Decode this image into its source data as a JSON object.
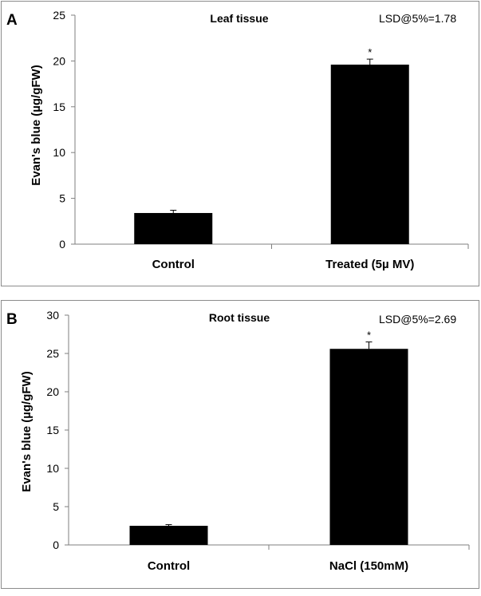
{
  "panels": [
    {
      "letter": "A",
      "title": "Leaf tissue",
      "lsd": "LSD@5%=1.78",
      "ylabel": "Evan's blue (µg/gFW)"
    },
    {
      "letter": "B",
      "title": "Root tissue",
      "lsd": "LSD@5%=2.69",
      "ylabel": "Evan's blue (µg/gFW)"
    }
  ],
  "chart_data": [
    {
      "type": "bar",
      "title": "Leaf tissue",
      "xlabel": "",
      "ylabel": "Evan's blue (µg/gFW)",
      "categories": [
        "Control",
        "Treated (5µ MV)"
      ],
      "values": [
        3.4,
        19.6
      ],
      "errors": [
        0.3,
        0.6
      ],
      "significance": [
        "",
        "*"
      ],
      "ylim": [
        0,
        25
      ],
      "yticks": [
        0,
        5,
        10,
        15,
        20,
        25
      ],
      "grid": false,
      "annotation": "LSD@5%=1.78",
      "color": "#000000"
    },
    {
      "type": "bar",
      "title": "Root tissue",
      "xlabel": "",
      "ylabel": "Evan's blue (µg/gFW)",
      "categories": [
        "Control",
        "NaCl (150mM)"
      ],
      "values": [
        2.5,
        25.6
      ],
      "errors": [
        0.15,
        0.9
      ],
      "significance": [
        "",
        "*"
      ],
      "ylim": [
        0,
        30
      ],
      "yticks": [
        0,
        5,
        10,
        15,
        20,
        25,
        30
      ],
      "grid": false,
      "annotation": "LSD@5%=2.69",
      "color": "#000000"
    }
  ]
}
